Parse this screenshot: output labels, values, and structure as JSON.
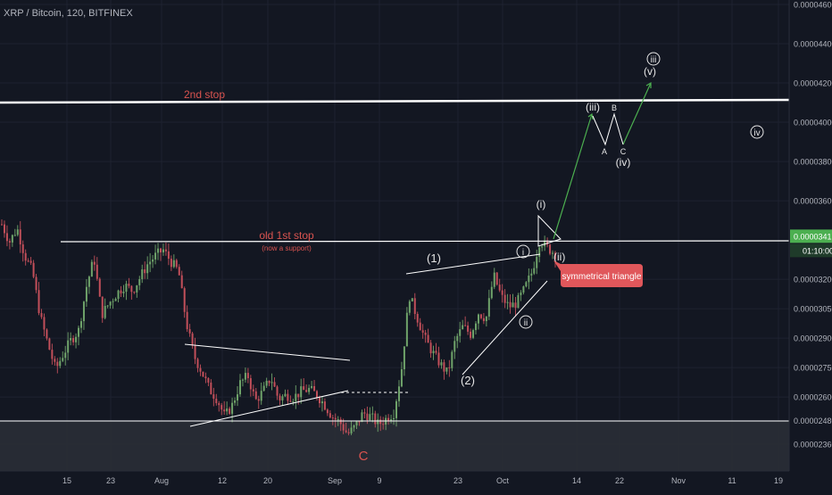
{
  "header": {
    "title": "XRP / Bitcoin, 120, BITFINEX"
  },
  "colors": {
    "background": "#131722",
    "grid": "#1e2230",
    "axis_text": "#b2b5be",
    "up": "#6fa36a",
    "down": "#c24f5a",
    "label_red": "#d9534f",
    "line_white": "#ffffff",
    "price_badge": "#4caf50",
    "time_badge": "#4caf50",
    "callout": "#e0575b",
    "arrow": "#4caf50",
    "support_zone": "#3a3d46"
  },
  "chart_data": {
    "type": "line",
    "title": "XRP / Bitcoin, 120, BITFINEX",
    "xlabel": "",
    "ylabel": "",
    "x_ticks": [
      "15",
      "23",
      "Aug",
      "12",
      "20",
      "Sep",
      "9",
      "23",
      "Oct",
      "14",
      "22",
      "Nov",
      "11",
      "19"
    ],
    "y_ticks": [
      "0.00004600",
      "0.00004400",
      "0.00004200",
      "0.00004000",
      "0.00003800",
      "0.00003600",
      "0.00003200",
      "0.00003050",
      "0.00002900",
      "0.00002750",
      "0.00002600",
      "0.00002480",
      "0.00002360"
    ],
    "current_price": "0.00003417",
    "countdown": "01:10:00",
    "grid": true,
    "series": [
      {
        "values": [
          34.8,
          33.9,
          34.6,
          33.2,
          32.4,
          30.1,
          28.7,
          27.4,
          28.2,
          28.9,
          29.4,
          31.6,
          33.1,
          30.2,
          30.8,
          31.3,
          31.7,
          31.4,
          32.1,
          32.8,
          33.2,
          33.5,
          32.9,
          32.4,
          29.8,
          28.1,
          27.3,
          26.4,
          25.9,
          25.0,
          25.6,
          26.7,
          27.1,
          25.8,
          26.3,
          27.0,
          25.9,
          26.1,
          26.0,
          26.3,
          26.4,
          26.1,
          25.6,
          25.0,
          24.7,
          24.1,
          24.5,
          25.2,
          25.0,
          24.6,
          24.9,
          25.2,
          27.4,
          31.2,
          30.1,
          29.0,
          28.3,
          27.7,
          27.2,
          28.9,
          29.6,
          29.2,
          30.3,
          30.0,
          32.2,
          31.1,
          30.6,
          30.8,
          31.5,
          32.4,
          34.0,
          33.6,
          33.3
        ]
      }
    ]
  },
  "annotations": {
    "second_stop": "2nd stop",
    "old_first_stop": "old 1st stop",
    "now_support": "(now a support)",
    "callout": "symmetrical triangle",
    "wave_C": "C",
    "wave_1": "(1)",
    "wave_2": "(2)",
    "wave_i_small": "i",
    "wave_ii_small": "ii",
    "wave_i_paren": "(i)",
    "wave_ii_paren": "(ii)",
    "wave_iii_paren": "(iii)",
    "wave_iv_paren": "(iv)",
    "wave_v_paren": "(v)",
    "wave_A": "A",
    "wave_B": "B",
    "wave_C_small": "C",
    "wave_iii_circle": "iii",
    "wave_iv_circle": "iv"
  }
}
